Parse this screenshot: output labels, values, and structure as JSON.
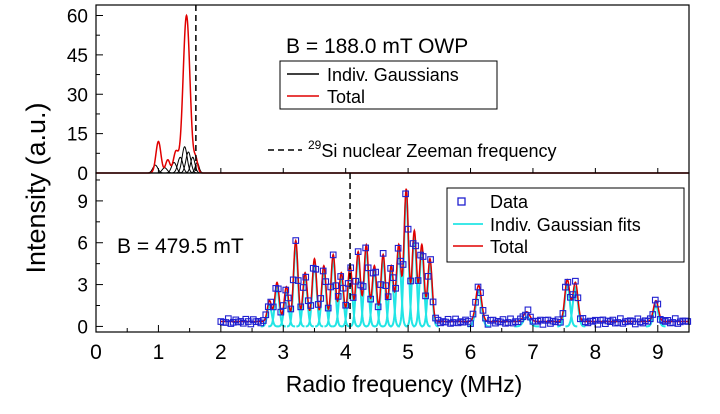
{
  "figure": {
    "ylabel": "Intensity (a.u.)",
    "xlabel": "Radio frequency (MHz)"
  },
  "chart_data": [
    {
      "panel": "top",
      "type": "line",
      "annotation": "B = 188.0 mT OWP",
      "legend": {
        "placement": "top-right",
        "entries": [
          "Indiv. Gaussians",
          "Total"
        ]
      },
      "zeeman_label": {
        "sup": "29",
        "text": "Si nuclear Zeeman frequency"
      },
      "xlim": [
        0,
        9.5
      ],
      "ylim": [
        0,
        64
      ],
      "yticks": [
        "0",
        "15",
        "30",
        "45",
        "60"
      ],
      "zeeman_line_x": 1.6,
      "colors": {
        "gaussians": "#000000",
        "total": "#e00000",
        "zeeman": "#000000"
      },
      "total_peaks": [
        {
          "center": 1.0,
          "amplitude": 12,
          "sigma": 0.04
        },
        {
          "center": 1.15,
          "amplitude": 5,
          "sigma": 0.035
        },
        {
          "center": 1.28,
          "amplitude": 8,
          "sigma": 0.04
        },
        {
          "center": 1.45,
          "amplitude": 60,
          "sigma": 0.055
        },
        {
          "center": 1.6,
          "amplitude": 5,
          "sigma": 0.03
        }
      ],
      "gaussians": [
        {
          "center": 0.95,
          "amplitude": 3,
          "sigma": 0.04
        },
        {
          "center": 1.1,
          "amplitude": 2,
          "sigma": 0.04
        },
        {
          "center": 1.25,
          "amplitude": 4,
          "sigma": 0.04
        },
        {
          "center": 1.35,
          "amplitude": 6,
          "sigma": 0.04
        },
        {
          "center": 1.42,
          "amplitude": 10,
          "sigma": 0.04
        },
        {
          "center": 1.48,
          "amplitude": 8,
          "sigma": 0.04
        },
        {
          "center": 1.55,
          "amplitude": 6,
          "sigma": 0.035
        },
        {
          "center": 1.62,
          "amplitude": 4,
          "sigma": 0.03
        }
      ]
    },
    {
      "panel": "bottom",
      "type": "scatter",
      "annotation": "B = 479.5 mT",
      "legend": {
        "placement": "top-right",
        "entries": [
          "Data",
          "Indiv. Gaussian fits",
          "Total"
        ]
      },
      "xlim": [
        0,
        9.5
      ],
      "ylim": [
        -0.4,
        11
      ],
      "xticks": [
        "0",
        "1",
        "2",
        "3",
        "4",
        "5",
        "6",
        "7",
        "8",
        "9"
      ],
      "yticks": [
        "0",
        "3",
        "6",
        "9"
      ],
      "zeeman_line_x": 4.07,
      "colors": {
        "data": "#2020d0",
        "fits": "#22e5e5",
        "total": "#e00000",
        "zeeman": "#000000"
      },
      "data_range": [
        2.0,
        9.5
      ],
      "data_step": 0.04,
      "baseline": 0.35,
      "gaussians": [
        {
          "center": 2.78,
          "amplitude": 1.5,
          "sigma": 0.035
        },
        {
          "center": 2.9,
          "amplitude": 2.8,
          "sigma": 0.035
        },
        {
          "center": 3.05,
          "amplitude": 2.5,
          "sigma": 0.035
        },
        {
          "center": 3.2,
          "amplitude": 5.8,
          "sigma": 0.035
        },
        {
          "center": 3.35,
          "amplitude": 3.5,
          "sigma": 0.035
        },
        {
          "center": 3.5,
          "amplitude": 4.5,
          "sigma": 0.035
        },
        {
          "center": 3.65,
          "amplitude": 4.0,
          "sigma": 0.035
        },
        {
          "center": 3.8,
          "amplitude": 4.8,
          "sigma": 0.035
        },
        {
          "center": 3.93,
          "amplitude": 3.5,
          "sigma": 0.035
        },
        {
          "center": 4.07,
          "amplitude": 4.0,
          "sigma": 0.035
        },
        {
          "center": 4.2,
          "amplitude": 5.0,
          "sigma": 0.035
        },
        {
          "center": 4.33,
          "amplitude": 5.5,
          "sigma": 0.035
        },
        {
          "center": 4.46,
          "amplitude": 4.0,
          "sigma": 0.035
        },
        {
          "center": 4.6,
          "amplitude": 4.8,
          "sigma": 0.035
        },
        {
          "center": 4.73,
          "amplitude": 4.0,
          "sigma": 0.035
        },
        {
          "center": 4.85,
          "amplitude": 5.5,
          "sigma": 0.035
        },
        {
          "center": 4.97,
          "amplitude": 9.5,
          "sigma": 0.035
        },
        {
          "center": 5.1,
          "amplitude": 6.5,
          "sigma": 0.035
        },
        {
          "center": 5.22,
          "amplitude": 5.5,
          "sigma": 0.035
        },
        {
          "center": 5.35,
          "amplitude": 4.5,
          "sigma": 0.035
        },
        {
          "center": 6.13,
          "amplitude": 2.6,
          "sigma": 0.045
        },
        {
          "center": 6.9,
          "amplitude": 0.7,
          "sigma": 0.05
        },
        {
          "center": 7.55,
          "amplitude": 3.0,
          "sigma": 0.04
        },
        {
          "center": 7.68,
          "amplitude": 2.8,
          "sigma": 0.04
        },
        {
          "center": 8.97,
          "amplitude": 1.5,
          "sigma": 0.04
        }
      ]
    }
  ]
}
